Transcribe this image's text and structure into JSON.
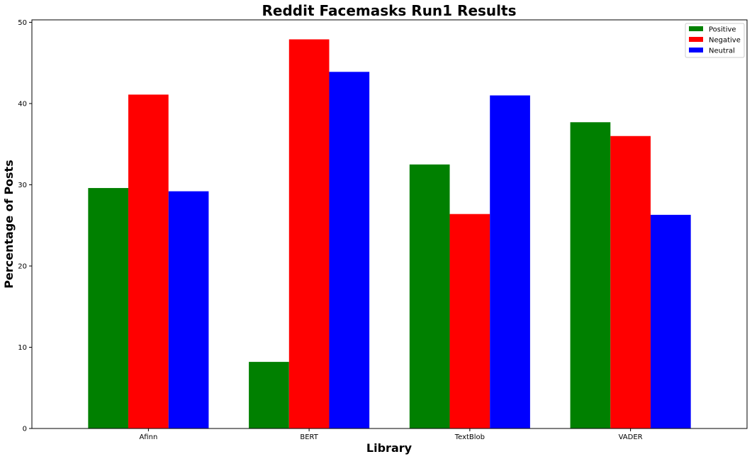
{
  "chart_data": {
    "type": "bar",
    "title": "Reddit Facemasks Run1 Results",
    "xlabel": "Library",
    "ylabel": "Percentage of Posts",
    "categories": [
      "Afinn",
      "BERT",
      "TextBlob",
      "VADER"
    ],
    "series": [
      {
        "name": "Positive",
        "color": "#008000",
        "values": [
          29.6,
          8.2,
          32.5,
          37.7
        ]
      },
      {
        "name": "Negative",
        "color": "#ff0000",
        "values": [
          41.1,
          47.9,
          26.4,
          36.0
        ]
      },
      {
        "name": "Neutral",
        "color": "#0000ff",
        "values": [
          29.2,
          43.9,
          41.0,
          26.3
        ]
      }
    ],
    "ylim": [
      0,
      50.3
    ],
    "yticks": [
      0,
      10,
      20,
      30,
      40,
      50
    ],
    "grid": false,
    "legend_position": "top-right"
  }
}
